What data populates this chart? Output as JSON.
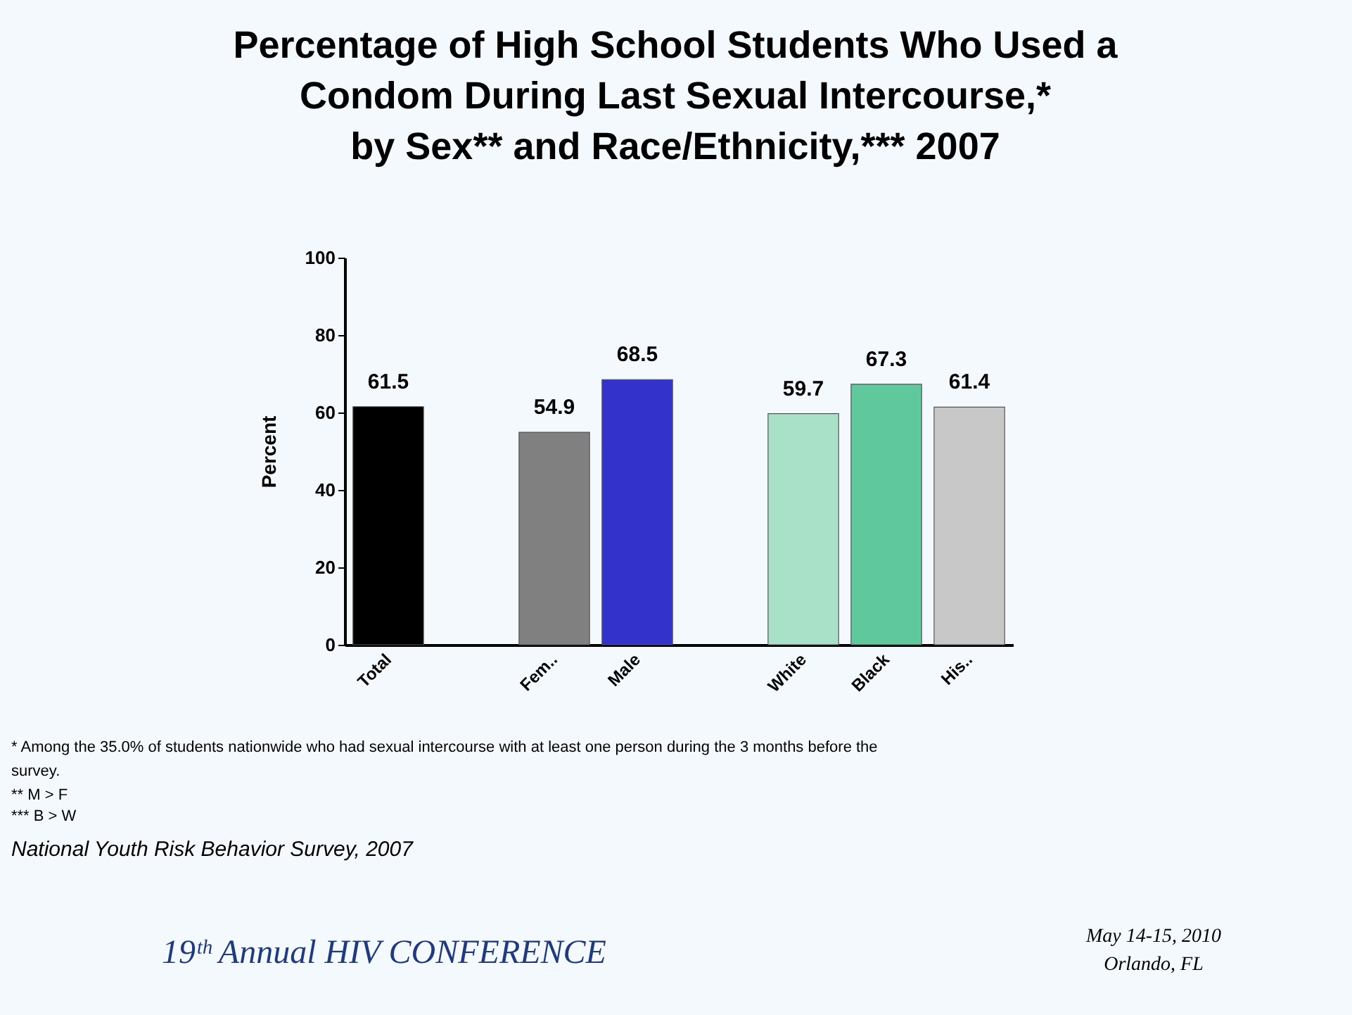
{
  "chart_data": {
    "type": "bar",
    "title": "Percentage of High School Students Who Used a\nCondom During Last Sexual Intercourse,*\nby Sex** and Race/Ethnicity,*** 2007",
    "ylabel": "Percent",
    "categories": [
      "Total",
      null,
      "Fem..",
      "Male",
      null,
      "White",
      "Black",
      "His.."
    ],
    "values": [
      61.5,
      null,
      54.9,
      68.5,
      null,
      59.7,
      67.3,
      61.4
    ],
    "colors": [
      "#000000",
      "#ffffff",
      "#808080",
      "#3333cc",
      "#ffffff",
      "#a8e0c8",
      "#5fc89c",
      "#c8c8c8"
    ],
    "ylim": [
      0,
      100
    ],
    "yticks": [
      0,
      20,
      40,
      60,
      80,
      100
    ],
    "grid": false,
    "data_labels": true,
    "annotations": [
      "* Among the 35.0% of students nationwide who had sexual intercourse with at least one person during the 3 months before the survey.",
      "** M > F",
      "*** B > W",
      "National Youth Risk Behavior Survey, 2007",
      "19ᵗʰ Annual HIV CONFERENCE",
      "May 14-15, 2010\nOrlando, FL"
    ]
  }
}
